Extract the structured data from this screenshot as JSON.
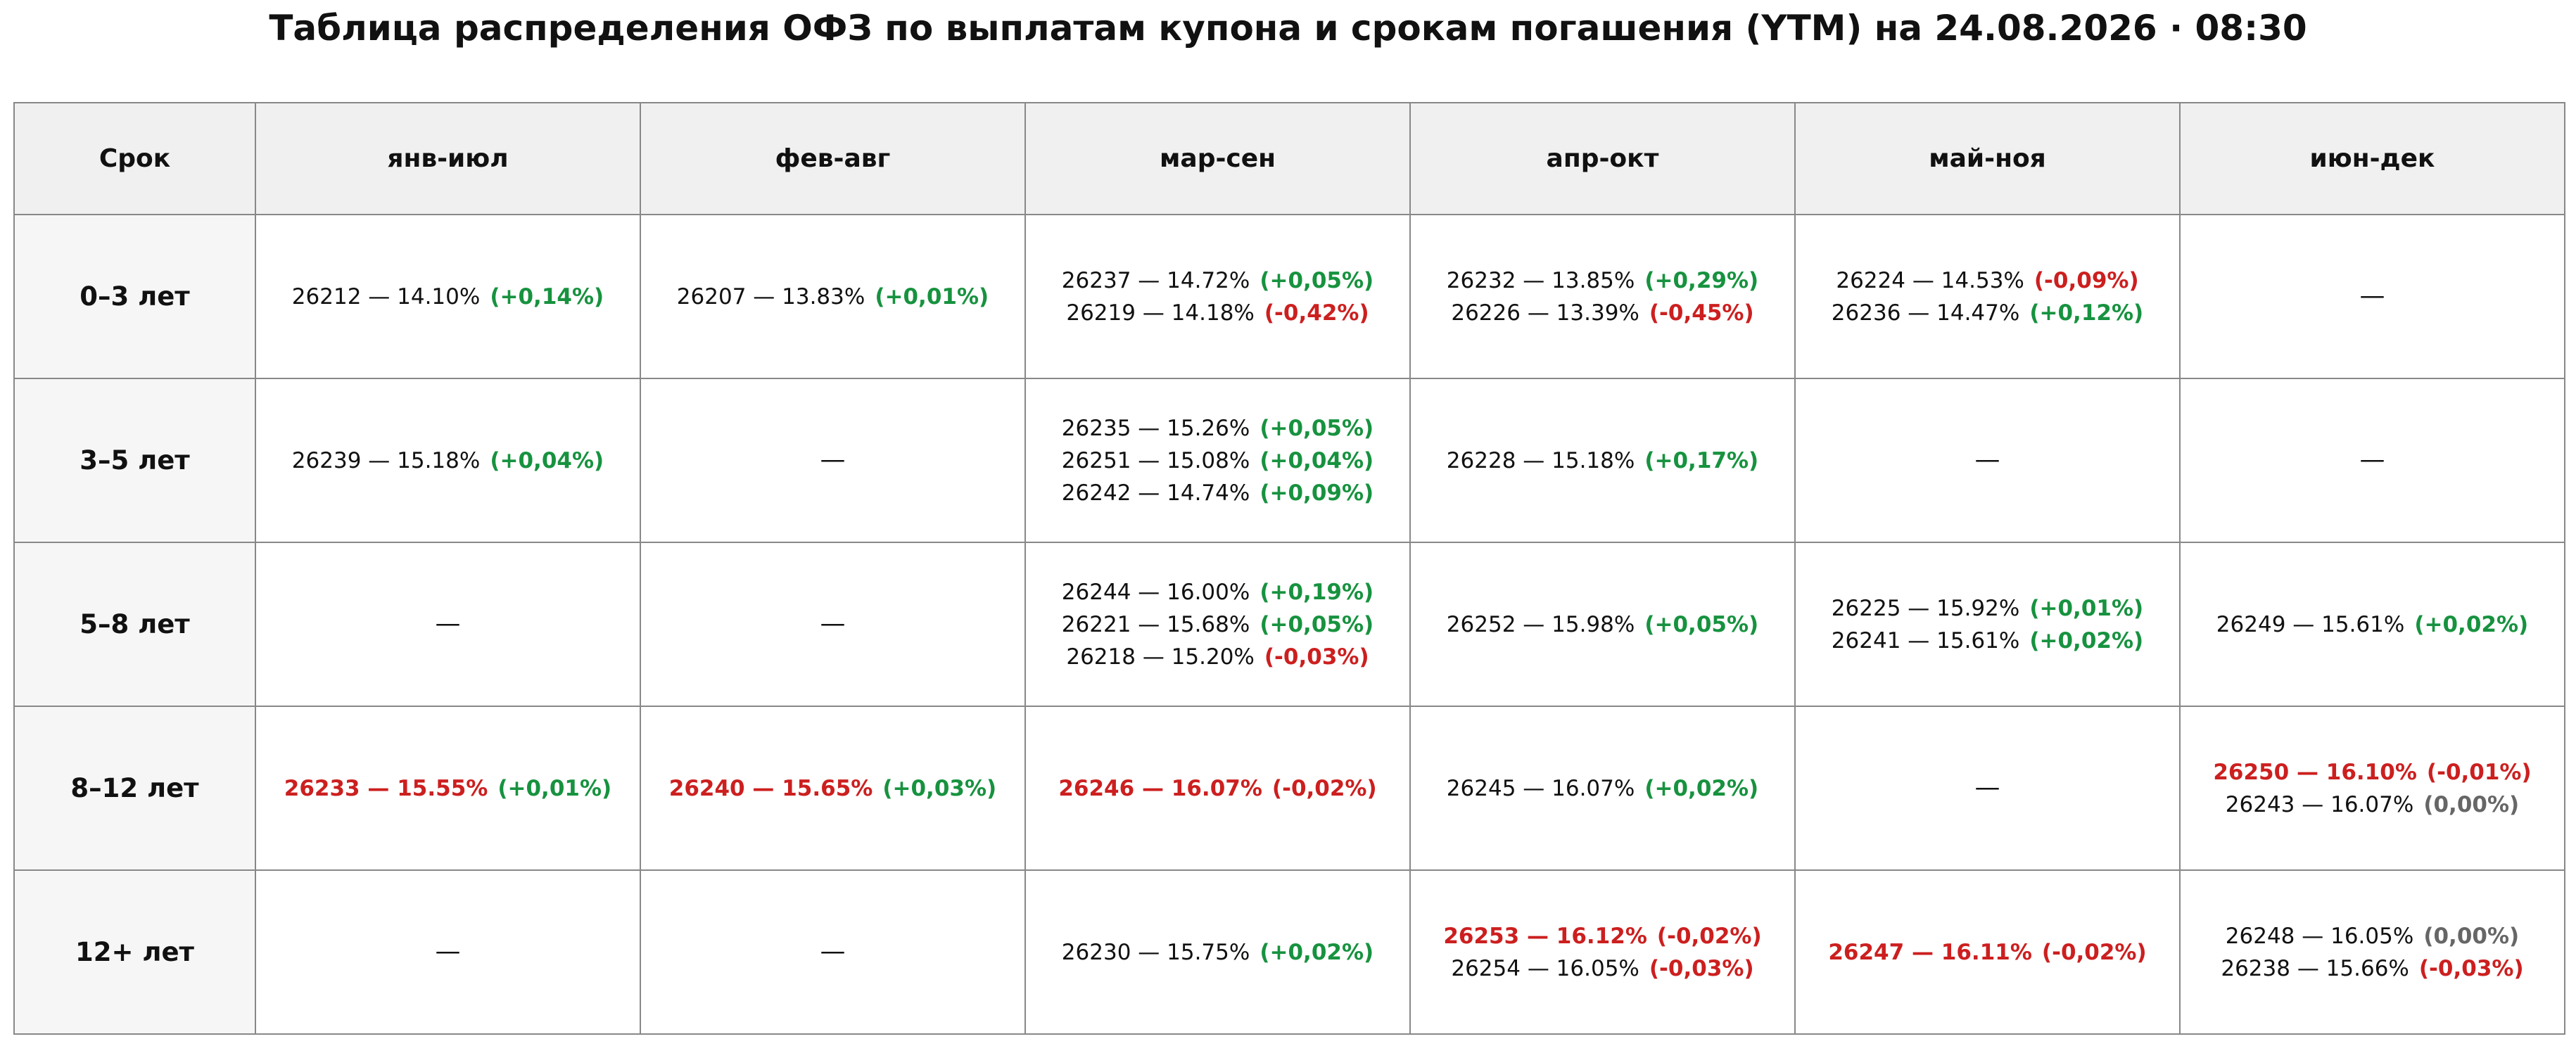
{
  "header": {
    "title": "Таблица распределения ОФЗ по выплатам купона и срокам погашения (YTM) на 24.08.2026 · 08:30"
  },
  "table": {
    "columns": [
      "Срок",
      "янв-июл",
      "фев-авг",
      "мар-сен",
      "апр-окт",
      "май-ноя",
      "июн-дек"
    ],
    "rows": [
      {
        "label": "0–3 лет",
        "cells": [
          [
            {
              "text": "26212 — 14.10%",
              "change": "(+0,14%)",
              "change_color": "#17923f"
            }
          ],
          [
            {
              "text": "26207 — 13.83%",
              "change": "(+0,01%)",
              "change_color": "#17923f"
            }
          ],
          [
            {
              "text": "26237 — 14.72%",
              "change": "(+0,05%)",
              "change_color": "#17923f"
            },
            {
              "text": "26219 — 14.18%",
              "change": "(-0,42%)",
              "change_color": "#cc1f1f"
            }
          ],
          [
            {
              "text": "26232 — 13.85%",
              "change": "(+0,29%)",
              "change_color": "#17923f"
            },
            {
              "text": "26226 — 13.39%",
              "change": "(-0,45%)",
              "change_color": "#cc1f1f"
            }
          ],
          [
            {
              "text": "26224 — 14.53%",
              "change": "(-0,09%)",
              "change_color": "#cc1f1f"
            },
            {
              "text": "26236 — 14.47%",
              "change": "(+0,12%)",
              "change_color": "#17923f"
            }
          ],
          "—"
        ]
      },
      {
        "label": "3–5 лет",
        "cells": [
          [
            {
              "text": "26239 — 15.18%",
              "change": "(+0,04%)",
              "change_color": "#17923f"
            }
          ],
          "—",
          [
            {
              "text": "26235 — 15.26%",
              "change": "(+0,05%)",
              "change_color": "#17923f"
            },
            {
              "text": "26251 — 15.08%",
              "change": "(+0,04%)",
              "change_color": "#17923f"
            },
            {
              "text": "26242 — 14.74%",
              "change": "(+0,09%)",
              "change_color": "#17923f"
            }
          ],
          [
            {
              "text": "26228 — 15.18%",
              "change": "(+0,17%)",
              "change_color": "#17923f"
            }
          ],
          "—",
          "—"
        ]
      },
      {
        "label": "5–8 лет",
        "cells": [
          "—",
          "—",
          [
            {
              "text": "26244 — 16.00%",
              "change": "(+0,19%)",
              "change_color": "#17923f"
            },
            {
              "text": "26221 — 15.68%",
              "change": "(+0,05%)",
              "change_color": "#17923f"
            },
            {
              "text": "26218 — 15.20%",
              "change": "(-0,03%)",
              "change_color": "#cc1f1f"
            }
          ],
          [
            {
              "text": "26252 — 15.98%",
              "change": "(+0,05%)",
              "change_color": "#17923f"
            }
          ],
          [
            {
              "text": "26225 — 15.92%",
              "change": "(+0,01%)",
              "change_color": "#17923f"
            },
            {
              "text": "26241 — 15.61%",
              "change": "(+0,02%)",
              "change_color": "#17923f"
            }
          ],
          [
            {
              "text": "26249 — 15.61%",
              "change": "(+0,02%)",
              "change_color": "#17923f"
            }
          ]
        ]
      },
      {
        "label": "8–12 лет",
        "cells": [
          [
            {
              "text": "26233 — 15.55%",
              "change": "(+0,01%)",
              "change_color": "#17923f",
              "highlight": true
            }
          ],
          [
            {
              "text": "26240 — 15.65%",
              "change": "(+0,03%)",
              "change_color": "#17923f",
              "highlight": true
            }
          ],
          [
            {
              "text": "26246 — 16.07%",
              "change": "(-0,02%)",
              "change_color": "#cc1f1f",
              "highlight": true
            }
          ],
          [
            {
              "text": "26245 — 16.07%",
              "change": "(+0,02%)",
              "change_color": "#17923f"
            }
          ],
          "—",
          [
            {
              "text": "26250 — 16.10%",
              "change": "(-0,01%)",
              "change_color": "#cc1f1f",
              "highlight": true
            },
            {
              "text": "26243 — 16.07%",
              "change": "(0,00%)",
              "change_color": "#666666"
            }
          ]
        ]
      },
      {
        "label": "12+ лет",
        "cells": [
          "—",
          "—",
          [
            {
              "text": "26230 — 15.75%",
              "change": "(+0,02%)",
              "change_color": "#17923f"
            }
          ],
          [
            {
              "text": "26253 — 16.12%",
              "change": "(-0,02%)",
              "change_color": "#cc1f1f",
              "highlight": true
            },
            {
              "text": "26254 — 16.05%",
              "change": "(-0,03%)",
              "change_color": "#cc1f1f"
            }
          ],
          [
            {
              "text": "26247 — 16.11%",
              "change": "(-0,02%)",
              "change_color": "#cc1f1f",
              "highlight": true
            }
          ],
          [
            {
              "text": "26248 — 16.05%",
              "change": "(0,00%)",
              "change_color": "#666666"
            },
            {
              "text": "26238 — 15.66%",
              "change": "(-0,03%)",
              "change_color": "#cc1f1f"
            }
          ]
        ]
      }
    ]
  }
}
